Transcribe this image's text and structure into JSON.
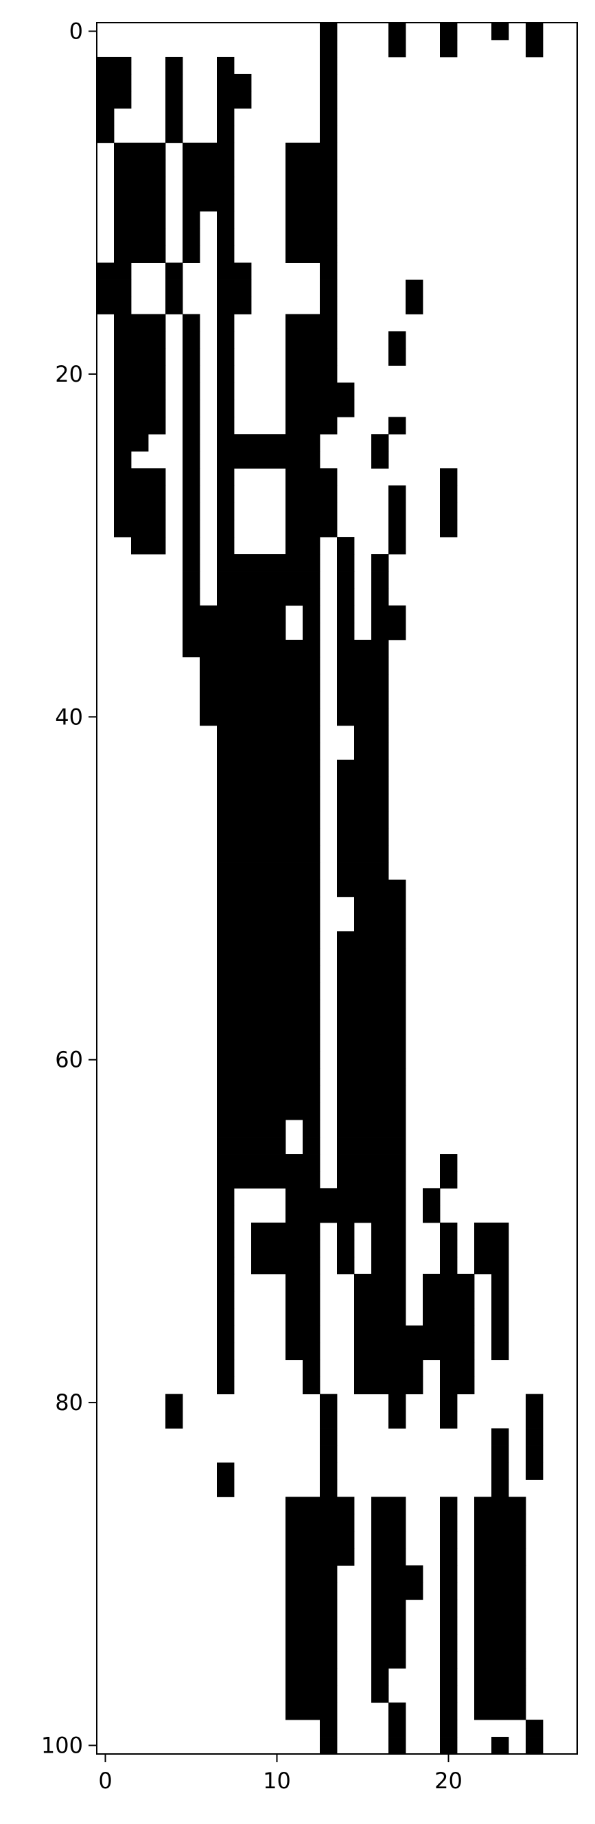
{
  "chart_data": {
    "type": "heatmap",
    "colormap": "binary",
    "colors": {
      "one": "#000000",
      "zero": "#ffffff",
      "frame": "#000000"
    },
    "grid": false,
    "xlim": [
      -0.5,
      27.5
    ],
    "ylim": [
      100.5,
      -0.5
    ],
    "xticks": [
      0,
      10,
      20
    ],
    "yticks": [
      0,
      20,
      40,
      60,
      80,
      100
    ],
    "row_runs": [
      [
        [
          13,
          13
        ],
        [
          17,
          17
        ],
        [
          20,
          20
        ],
        [
          23,
          23
        ],
        [
          25,
          25
        ]
      ],
      [
        [
          13,
          13
        ],
        [
          17,
          17
        ],
        [
          20,
          20
        ],
        [
          25,
          25
        ]
      ],
      [
        [
          0,
          1
        ],
        [
          4,
          4
        ],
        [
          7,
          7
        ],
        [
          13,
          13
        ]
      ],
      [
        [
          0,
          1
        ],
        [
          4,
          4
        ],
        [
          7,
          8
        ],
        [
          13,
          13
        ]
      ],
      [
        [
          0,
          1
        ],
        [
          4,
          4
        ],
        [
          7,
          8
        ],
        [
          13,
          13
        ]
      ],
      [
        [
          0,
          0
        ],
        [
          4,
          4
        ],
        [
          7,
          7
        ],
        [
          13,
          13
        ]
      ],
      [
        [
          0,
          0
        ],
        [
          4,
          4
        ],
        [
          7,
          7
        ],
        [
          13,
          13
        ]
      ],
      [
        [
          1,
          3
        ],
        [
          5,
          7
        ],
        [
          11,
          13
        ]
      ],
      [
        [
          1,
          3
        ],
        [
          5,
          7
        ],
        [
          11,
          13
        ]
      ],
      [
        [
          1,
          3
        ],
        [
          5,
          7
        ],
        [
          11,
          13
        ]
      ],
      [
        [
          1,
          3
        ],
        [
          5,
          6
        ],
        [
          7,
          7
        ],
        [
          11,
          13
        ]
      ],
      [
        [
          1,
          3
        ],
        [
          5,
          5
        ],
        [
          7,
          7
        ],
        [
          11,
          13
        ]
      ],
      [
        [
          1,
          3
        ],
        [
          5,
          5
        ],
        [
          7,
          7
        ],
        [
          11,
          13
        ]
      ],
      [
        [
          1,
          3
        ],
        [
          5,
          5
        ],
        [
          7,
          7
        ],
        [
          11,
          13
        ]
      ],
      [
        [
          0,
          1
        ],
        [
          4,
          4
        ],
        [
          7,
          8
        ],
        [
          13,
          13
        ]
      ],
      [
        [
          0,
          1
        ],
        [
          4,
          4
        ],
        [
          7,
          8
        ],
        [
          13,
          13
        ],
        [
          18,
          18
        ]
      ],
      [
        [
          0,
          1
        ],
        [
          4,
          4
        ],
        [
          7,
          8
        ],
        [
          13,
          13
        ],
        [
          18,
          18
        ]
      ],
      [
        [
          1,
          3
        ],
        [
          5,
          5
        ],
        [
          7,
          7
        ],
        [
          11,
          13
        ]
      ],
      [
        [
          1,
          3
        ],
        [
          5,
          5
        ],
        [
          7,
          7
        ],
        [
          11,
          13
        ],
        [
          17,
          17
        ]
      ],
      [
        [
          1,
          3
        ],
        [
          5,
          5
        ],
        [
          7,
          7
        ],
        [
          11,
          13
        ],
        [
          17,
          17
        ]
      ],
      [
        [
          1,
          3
        ],
        [
          5,
          5
        ],
        [
          7,
          7
        ],
        [
          11,
          13
        ]
      ],
      [
        [
          1,
          3
        ],
        [
          5,
          5
        ],
        [
          7,
          7
        ],
        [
          11,
          14
        ]
      ],
      [
        [
          1,
          3
        ],
        [
          5,
          5
        ],
        [
          7,
          7
        ],
        [
          11,
          14
        ]
      ],
      [
        [
          1,
          3
        ],
        [
          5,
          5
        ],
        [
          7,
          7
        ],
        [
          11,
          13
        ],
        [
          17,
          17
        ]
      ],
      [
        [
          1,
          2
        ],
        [
          5,
          5
        ],
        [
          7,
          12
        ],
        [
          16,
          16
        ]
      ],
      [
        [
          1,
          1
        ],
        [
          5,
          5
        ],
        [
          7,
          12
        ],
        [
          16,
          16
        ]
      ],
      [
        [
          1,
          3
        ],
        [
          5,
          5
        ],
        [
          7,
          7
        ],
        [
          11,
          13
        ],
        [
          20,
          20
        ]
      ],
      [
        [
          1,
          3
        ],
        [
          5,
          5
        ],
        [
          7,
          7
        ],
        [
          11,
          13
        ],
        [
          17,
          17
        ],
        [
          20,
          20
        ]
      ],
      [
        [
          1,
          3
        ],
        [
          5,
          5
        ],
        [
          7,
          7
        ],
        [
          11,
          13
        ],
        [
          17,
          17
        ],
        [
          20,
          20
        ]
      ],
      [
        [
          1,
          3
        ],
        [
          5,
          5
        ],
        [
          7,
          7
        ],
        [
          11,
          13
        ],
        [
          17,
          17
        ],
        [
          20,
          20
        ]
      ],
      [
        [
          2,
          3
        ],
        [
          5,
          5
        ],
        [
          7,
          7
        ],
        [
          11,
          12
        ],
        [
          14,
          14
        ],
        [
          17,
          17
        ]
      ],
      [
        [
          5,
          5
        ],
        [
          7,
          12
        ],
        [
          14,
          14
        ],
        [
          16,
          16
        ]
      ],
      [
        [
          5,
          5
        ],
        [
          7,
          12
        ],
        [
          14,
          14
        ],
        [
          16,
          16
        ]
      ],
      [
        [
          5,
          5
        ],
        [
          7,
          12
        ],
        [
          14,
          14
        ],
        [
          16,
          16
        ]
      ],
      [
        [
          5,
          10
        ],
        [
          12,
          12
        ],
        [
          14,
          14
        ],
        [
          16,
          17
        ]
      ],
      [
        [
          5,
          10
        ],
        [
          12,
          12
        ],
        [
          14,
          14
        ],
        [
          16,
          17
        ]
      ],
      [
        [
          5,
          12
        ],
        [
          14,
          16
        ]
      ],
      [
        [
          6,
          12
        ],
        [
          14,
          16
        ]
      ],
      [
        [
          6,
          12
        ],
        [
          14,
          16
        ]
      ],
      [
        [
          6,
          12
        ],
        [
          14,
          16
        ]
      ],
      [
        [
          6,
          12
        ],
        [
          14,
          16
        ]
      ],
      [
        [
          7,
          12
        ],
        [
          15,
          16
        ]
      ],
      [
        [
          7,
          12
        ],
        [
          15,
          16
        ]
      ],
      [
        [
          7,
          12
        ],
        [
          14,
          16
        ]
      ],
      [
        [
          7,
          12
        ],
        [
          14,
          16
        ]
      ],
      [
        [
          7,
          12
        ],
        [
          14,
          16
        ]
      ],
      [
        [
          7,
          12
        ],
        [
          14,
          16
        ]
      ],
      [
        [
          7,
          12
        ],
        [
          14,
          16
        ]
      ],
      [
        [
          7,
          12
        ],
        [
          14,
          16
        ]
      ],
      [
        [
          7,
          12
        ],
        [
          14,
          16
        ]
      ],
      [
        [
          7,
          12
        ],
        [
          14,
          17
        ]
      ],
      [
        [
          7,
          12
        ],
        [
          15,
          17
        ]
      ],
      [
        [
          7,
          12
        ],
        [
          15,
          17
        ]
      ],
      [
        [
          7,
          12
        ],
        [
          14,
          17
        ]
      ],
      [
        [
          7,
          12
        ],
        [
          14,
          17
        ]
      ],
      [
        [
          7,
          12
        ],
        [
          14,
          17
        ]
      ],
      [
        [
          7,
          12
        ],
        [
          14,
          17
        ]
      ],
      [
        [
          7,
          12
        ],
        [
          14,
          17
        ]
      ],
      [
        [
          7,
          12
        ],
        [
          14,
          17
        ]
      ],
      [
        [
          7,
          12
        ],
        [
          14,
          17
        ]
      ],
      [
        [
          7,
          12
        ],
        [
          14,
          17
        ]
      ],
      [
        [
          7,
          12
        ],
        [
          14,
          17
        ]
      ],
      [
        [
          7,
          12
        ],
        [
          14,
          17
        ]
      ],
      [
        [
          7,
          12
        ],
        [
          14,
          17
        ]
      ],
      [
        [
          7,
          10
        ],
        [
          12,
          12
        ],
        [
          14,
          17
        ]
      ],
      [
        [
          7,
          10
        ],
        [
          12,
          12
        ],
        [
          14,
          17
        ]
      ],
      [
        [
          7,
          12
        ],
        [
          14,
          17
        ],
        [
          20,
          20
        ]
      ],
      [
        [
          7,
          12
        ],
        [
          14,
          17
        ],
        [
          20,
          20
        ]
      ],
      [
        [
          7,
          7
        ],
        [
          11,
          17
        ],
        [
          19,
          19
        ]
      ],
      [
        [
          7,
          7
        ],
        [
          11,
          17
        ],
        [
          19,
          19
        ]
      ],
      [
        [
          7,
          7
        ],
        [
          9,
          12
        ],
        [
          14,
          14
        ],
        [
          16,
          17
        ],
        [
          20,
          20
        ],
        [
          22,
          23
        ]
      ],
      [
        [
          7,
          7
        ],
        [
          9,
          12
        ],
        [
          14,
          14
        ],
        [
          16,
          17
        ],
        [
          20,
          20
        ],
        [
          22,
          23
        ]
      ],
      [
        [
          7,
          7
        ],
        [
          9,
          12
        ],
        [
          14,
          14
        ],
        [
          16,
          17
        ],
        [
          20,
          20
        ],
        [
          22,
          23
        ]
      ],
      [
        [
          7,
          7
        ],
        [
          11,
          12
        ],
        [
          15,
          17
        ],
        [
          19,
          21
        ],
        [
          23,
          23
        ]
      ],
      [
        [
          7,
          7
        ],
        [
          11,
          12
        ],
        [
          15,
          17
        ],
        [
          19,
          21
        ],
        [
          23,
          23
        ]
      ],
      [
        [
          7,
          7
        ],
        [
          11,
          12
        ],
        [
          15,
          17
        ],
        [
          19,
          21
        ],
        [
          23,
          23
        ]
      ],
      [
        [
          7,
          7
        ],
        [
          11,
          12
        ],
        [
          15,
          21
        ],
        [
          23,
          23
        ]
      ],
      [
        [
          7,
          7
        ],
        [
          11,
          12
        ],
        [
          15,
          21
        ],
        [
          23,
          23
        ]
      ],
      [
        [
          7,
          7
        ],
        [
          12,
          12
        ],
        [
          15,
          18
        ],
        [
          20,
          21
        ]
      ],
      [
        [
          7,
          7
        ],
        [
          12,
          12
        ],
        [
          15,
          18
        ],
        [
          20,
          21
        ]
      ],
      [
        [
          4,
          4
        ],
        [
          13,
          13
        ],
        [
          17,
          17
        ],
        [
          20,
          20
        ],
        [
          25,
          25
        ]
      ],
      [
        [
          4,
          4
        ],
        [
          13,
          13
        ],
        [
          17,
          17
        ],
        [
          20,
          20
        ],
        [
          25,
          25
        ]
      ],
      [
        [
          13,
          13
        ],
        [
          23,
          23
        ],
        [
          25,
          25
        ]
      ],
      [
        [
          13,
          13
        ],
        [
          23,
          23
        ],
        [
          25,
          25
        ]
      ],
      [
        [
          7,
          7
        ],
        [
          13,
          13
        ],
        [
          23,
          23
        ],
        [
          25,
          25
        ]
      ],
      [
        [
          7,
          7
        ],
        [
          13,
          13
        ],
        [
          23,
          23
        ]
      ],
      [
        [
          11,
          14
        ],
        [
          16,
          17
        ],
        [
          20,
          20
        ],
        [
          22,
          24
        ]
      ],
      [
        [
          11,
          14
        ],
        [
          16,
          17
        ],
        [
          20,
          20
        ],
        [
          22,
          24
        ]
      ],
      [
        [
          11,
          14
        ],
        [
          16,
          17
        ],
        [
          20,
          20
        ],
        [
          22,
          24
        ]
      ],
      [
        [
          11,
          14
        ],
        [
          16,
          17
        ],
        [
          20,
          20
        ],
        [
          22,
          24
        ]
      ],
      [
        [
          11,
          13
        ],
        [
          16,
          18
        ],
        [
          20,
          20
        ],
        [
          22,
          24
        ]
      ],
      [
        [
          11,
          13
        ],
        [
          16,
          18
        ],
        [
          20,
          20
        ],
        [
          22,
          24
        ]
      ],
      [
        [
          11,
          13
        ],
        [
          16,
          17
        ],
        [
          20,
          20
        ],
        [
          22,
          24
        ]
      ],
      [
        [
          11,
          13
        ],
        [
          16,
          17
        ],
        [
          20,
          20
        ],
        [
          22,
          24
        ]
      ],
      [
        [
          11,
          13
        ],
        [
          16,
          17
        ],
        [
          20,
          20
        ],
        [
          22,
          24
        ]
      ],
      [
        [
          11,
          13
        ],
        [
          16,
          17
        ],
        [
          20,
          20
        ],
        [
          22,
          24
        ]
      ],
      [
        [
          11,
          13
        ],
        [
          16,
          16
        ],
        [
          20,
          20
        ],
        [
          22,
          24
        ]
      ],
      [
        [
          11,
          13
        ],
        [
          16,
          16
        ],
        [
          20,
          20
        ],
        [
          22,
          24
        ]
      ],
      [
        [
          11,
          13
        ],
        [
          17,
          17
        ],
        [
          20,
          20
        ],
        [
          22,
          24
        ]
      ],
      [
        [
          13,
          13
        ],
        [
          17,
          17
        ],
        [
          20,
          20
        ],
        [
          25,
          25
        ]
      ],
      [
        [
          13,
          13
        ],
        [
          17,
          17
        ],
        [
          20,
          20
        ],
        [
          23,
          23
        ],
        [
          25,
          25
        ]
      ]
    ]
  }
}
